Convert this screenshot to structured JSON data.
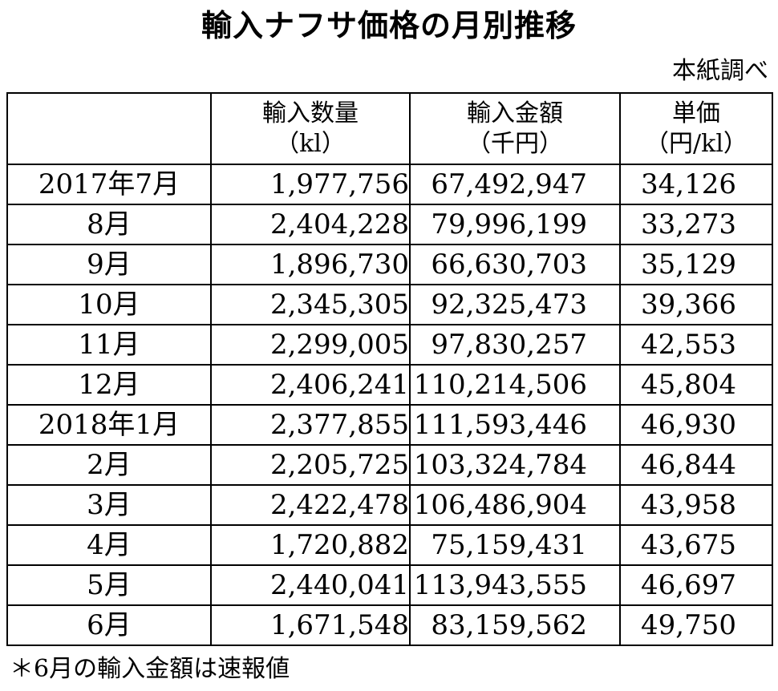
{
  "title": "輸入ナフサ価格の月別推移",
  "source": "本紙調べ",
  "table": {
    "headers": [
      {
        "line1": "",
        "line2": ""
      },
      {
        "line1": "輸入数量",
        "line2": "（kl）"
      },
      {
        "line1": "輸入金額",
        "line2": "（千円）"
      },
      {
        "line1": "単価",
        "line2": "（円/kl）"
      }
    ],
    "rows": [
      {
        "month": "2017年7月",
        "quantity": "1,977,756",
        "amount": "67,492,947",
        "price": "34,126"
      },
      {
        "month": "8月",
        "quantity": "2,404,228",
        "amount": "79,996,199",
        "price": "33,273"
      },
      {
        "month": "9月",
        "quantity": "1,896,730",
        "amount": "66,630,703",
        "price": "35,129"
      },
      {
        "month": "10月",
        "quantity": "2,345,305",
        "amount": "92,325,473",
        "price": "39,366"
      },
      {
        "month": "11月",
        "quantity": "2,299,005",
        "amount": "97,830,257",
        "price": "42,553"
      },
      {
        "month": "12月",
        "quantity": "2,406,241",
        "amount": "110,214,506",
        "price": "45,804"
      },
      {
        "month": "2018年1月",
        "quantity": "2,377,855",
        "amount": "111,593,446",
        "price": "46,930"
      },
      {
        "month": "2月",
        "quantity": "2,205,725",
        "amount": "103,324,784",
        "price": "46,844"
      },
      {
        "month": "3月",
        "quantity": "2,422,478",
        "amount": "106,486,904",
        "price": "43,958"
      },
      {
        "month": "4月",
        "quantity": "1,720,882",
        "amount": "75,159,431",
        "price": "43,675"
      },
      {
        "month": "5月",
        "quantity": "2,440,041",
        "amount": "113,943,555",
        "price": "46,697"
      },
      {
        "month": "6月",
        "quantity": "1,671,548",
        "amount": "83,159,562",
        "price": "49,750"
      }
    ]
  },
  "note": "＊6月の輸入金額は速報値"
}
